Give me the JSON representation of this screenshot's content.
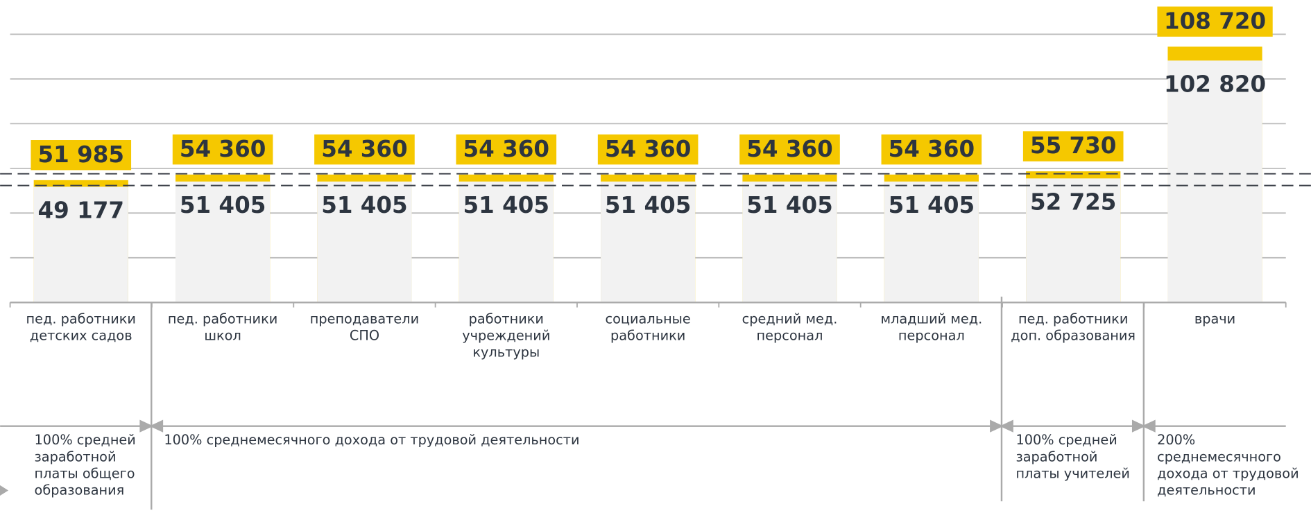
{
  "chart_data": {
    "type": "bar",
    "categories": [
      "пед. работники детских садов",
      "пед. работники школ",
      "преподаватели СПО",
      "работники учреждений культуры",
      "социальные работники",
      "средний мед. персонал",
      "младший мед. персонал",
      "пед. работники доп. образования",
      "врачи"
    ],
    "series": [
      {
        "color": "#f5c800",
        "values": [
          51985,
          54360,
          54360,
          54360,
          54360,
          54360,
          54360,
          55730,
          108720
        ],
        "value_labels": [
          "51 985",
          "54 360",
          "54 360",
          "54 360",
          "54 360",
          "54 360",
          "54 360",
          "55 730",
          "108 720"
        ]
      },
      {
        "color": "#f2f2f2",
        "values": [
          49177,
          51405,
          51405,
          51405,
          51405,
          51405,
          51405,
          52725,
          102820
        ],
        "value_labels": [
          "49 177",
          "51 405",
          "51 405",
          "51 405",
          "51 405",
          "51 405",
          "51 405",
          "52 725",
          "102 820"
        ]
      }
    ],
    "ylim": [
      0,
      114000
    ],
    "yticks": [
      0,
      19000,
      38000,
      57000,
      76000,
      95000,
      114000
    ],
    "grid": true,
    "reference_lines": [
      54700,
      49700
    ],
    "annotations": [
      "100% средней заработной платы общего образования",
      "100% среднемесячного дохода от трудовой деятельности",
      "100% средней заработной платы учителей",
      "200% среднемесячного дохода от трудовой деятельности"
    ]
  }
}
